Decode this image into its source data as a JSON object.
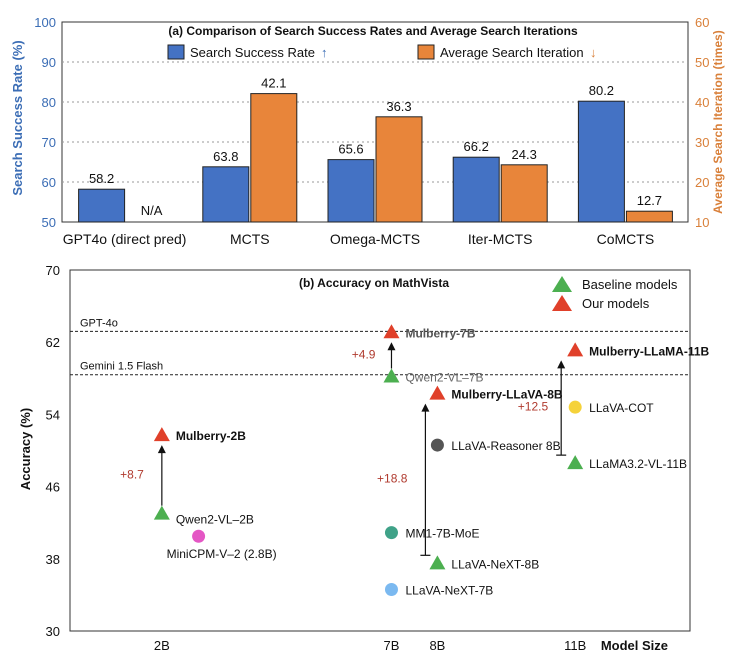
{
  "colors": {
    "blue": "#4472C4",
    "orange": "#E8853A",
    "left_axis": "#3B6DB5",
    "right_axis": "#D9803A",
    "triangle_baseline": "#4CAF50",
    "triangle_ours": "#E0402A",
    "gain": "#B03A2E",
    "dot_pink": "#E456C4",
    "dot_teal": "#3FA288",
    "dot_grey": "#555555",
    "dot_blue": "#7BB9F0",
    "dot_yellow": "#F5D23A"
  },
  "chart_data": [
    {
      "type": "bar",
      "title": "(a) Comparison of Search Success Rates and Average Search Iterations",
      "categories": [
        "GPT4o (direct pred)",
        "MCTS",
        "Omega-MCTS",
        "Iter-MCTS",
        "CoMCTS"
      ],
      "ylabel": "Search Success Rate (%)",
      "y2label": "Average Search Iteration (times)",
      "ylim": [
        50,
        100
      ],
      "y2lim": [
        10,
        60
      ],
      "yticks": [
        "50",
        "60",
        "70",
        "80",
        "90",
        "100"
      ],
      "y2ticks": [
        "10",
        "20",
        "30",
        "40",
        "50",
        "60"
      ],
      "legend_position": "top",
      "series": [
        {
          "name": "Search Success Rate",
          "arrow": "↑",
          "axis": "left",
          "values": [
            58.2,
            63.8,
            65.6,
            66.2,
            80.2
          ],
          "labels": [
            "58.2",
            "63.8",
            "65.6",
            "66.2",
            "80.2"
          ]
        },
        {
          "name": "Average Search Iteration",
          "arrow": "↓",
          "axis": "right",
          "values": [
            null,
            42.1,
            36.3,
            24.3,
            12.7
          ],
          "labels": [
            "N/A",
            "42.1",
            "36.3",
            "24.3",
            "12.7"
          ]
        }
      ]
    },
    {
      "type": "scatter",
      "title": "(b) Accuracy on MathVista",
      "ylabel": "Accuracy (%)",
      "xlabel": "Model Size",
      "ylim": [
        30,
        70
      ],
      "yticks": [
        "30",
        "38",
        "46",
        "54",
        "62",
        "70"
      ],
      "xticks": [
        {
          "label": "2B",
          "x": 2
        },
        {
          "label": "7B",
          "x": 7
        },
        {
          "label": "8B",
          "x": 8
        },
        {
          "label": "11B",
          "x": 11
        }
      ],
      "xlim": [
        0,
        13.5
      ],
      "legend": [
        {
          "label": "Baseline models",
          "marker": "triangle",
          "color_key": "triangle_baseline"
        },
        {
          "label": "Our models",
          "marker": "triangle",
          "color_key": "triangle_ours"
        }
      ],
      "reference_lines": [
        {
          "label": "GPT-4o",
          "y": 63.2
        },
        {
          "label": "Gemini 1.5 Flash",
          "y": 58.4
        }
      ],
      "points": [
        {
          "label": "Mulberry-2B",
          "x": 2.0,
          "y": 51.7,
          "marker": "triangle",
          "group": "ours",
          "bold": true
        },
        {
          "label": "Qwen2-VL–2B",
          "x": 2.0,
          "y": 43.0,
          "marker": "triangle",
          "group": "baseline"
        },
        {
          "label": "MiniCPM-V–2 (2.8B)",
          "x": 2.8,
          "y": 40.5,
          "marker": "circle",
          "color_key": "dot_pink"
        },
        {
          "label": "Mulberry-7B",
          "x": 7.0,
          "y": 63.1,
          "marker": "triangle",
          "group": "ours",
          "bold": true
        },
        {
          "label": "Qwen2-VL–7B",
          "x": 7.0,
          "y": 58.2,
          "marker": "triangle",
          "group": "baseline"
        },
        {
          "label": "MM1-7B-MoE",
          "x": 7.0,
          "y": 40.9,
          "marker": "circle",
          "color_key": "dot_teal"
        },
        {
          "label": "LLaVA-NeXT-7B",
          "x": 7.0,
          "y": 34.6,
          "marker": "circle",
          "color_key": "dot_blue"
        },
        {
          "label": "Mulberry-LLaVA-8B",
          "x": 8.0,
          "y": 56.3,
          "marker": "triangle",
          "group": "ours",
          "bold": true
        },
        {
          "label": "LLaVA-Reasoner 8B",
          "x": 8.0,
          "y": 50.6,
          "marker": "circle",
          "color_key": "dot_grey"
        },
        {
          "label": "LLaVA-NeXT-8B",
          "x": 8.0,
          "y": 37.5,
          "marker": "triangle",
          "group": "baseline"
        },
        {
          "label": "Mulberry-LLaMA-11B",
          "x": 11.0,
          "y": 61.1,
          "marker": "triangle",
          "group": "ours",
          "bold": true
        },
        {
          "label": "LLaVA-COT",
          "x": 11.0,
          "y": 54.8,
          "marker": "circle",
          "color_key": "dot_yellow"
        },
        {
          "label": "LLaMA3.2-VL-11B",
          "x": 11.0,
          "y": 48.6,
          "marker": "triangle",
          "group": "baseline"
        }
      ],
      "gains": [
        {
          "label": "+8.7",
          "x": 2.0,
          "from": 43.0,
          "to": 51.7
        },
        {
          "label": "+4.9",
          "x": 7.0,
          "from": 58.2,
          "to": 63.1
        },
        {
          "label": "+18.8",
          "x": 8.0,
          "from": 37.5,
          "to": 56.3
        },
        {
          "label": "+12.5",
          "x": 11.0,
          "from": 48.6,
          "to": 61.1
        }
      ]
    }
  ]
}
